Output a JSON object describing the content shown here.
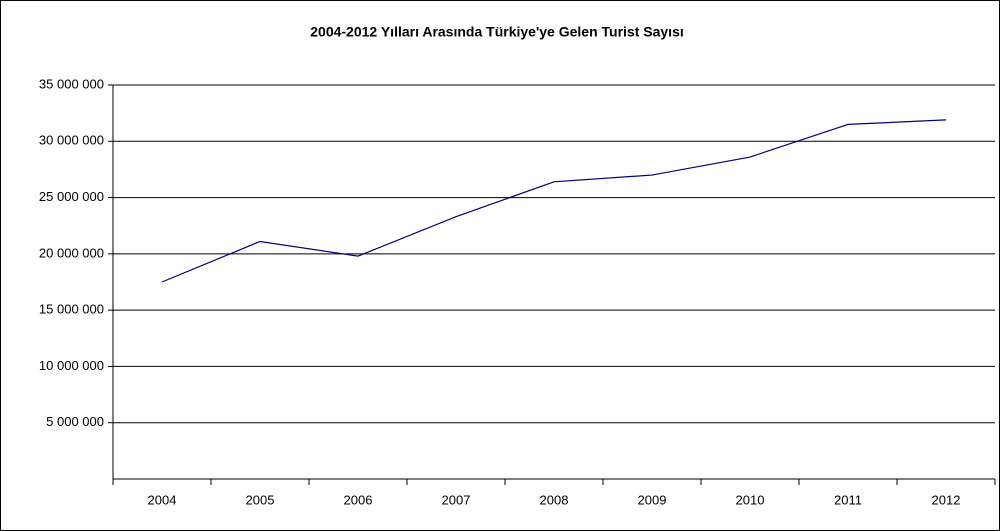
{
  "chart_data": {
    "type": "line",
    "title": "2004-2012 Yılları Arasında Türkiye'ye Gelen Turist Sayısı",
    "categories": [
      "2004",
      "2005",
      "2006",
      "2007",
      "2008",
      "2009",
      "2010",
      "2011",
      "2012"
    ],
    "series": [
      {
        "name": "Turist Sayısı",
        "color": "#000080",
        "values": [
          17500000,
          21100000,
          19800000,
          23300000,
          26400000,
          27000000,
          28600000,
          31500000,
          31900000
        ]
      }
    ],
    "ylim": [
      0,
      35000000
    ],
    "yticks": [
      {
        "value": 5000000,
        "label": "5 000 000"
      },
      {
        "value": 10000000,
        "label": "10 000 000"
      },
      {
        "value": 15000000,
        "label": "15 000 000"
      },
      {
        "value": 20000000,
        "label": "20 000 000"
      },
      {
        "value": 25000000,
        "label": "25 000 000"
      },
      {
        "value": 30000000,
        "label": "30 000 000"
      },
      {
        "value": 35000000,
        "label": "35 000 000"
      }
    ],
    "grid": true
  }
}
